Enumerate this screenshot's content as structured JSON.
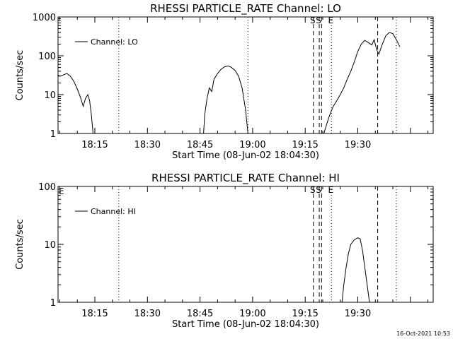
{
  "footer": {
    "timestamp": "16-Oct-2021 10:53"
  },
  "colors": {
    "background": "#ffffff",
    "foreground": "#000000"
  },
  "chart_data": [
    {
      "type": "line",
      "title": "RHESSI PARTICLE_RATE Channel: LO",
      "xlabel": "Start Time (08-Jun-02 18:04:30)",
      "ylabel": "Counts/sec",
      "xlim": [
        "18:04:30",
        "19:51:30"
      ],
      "ylim": [
        1,
        1000
      ],
      "yscale": "log",
      "x_ticks": [
        "18:15",
        "18:30",
        "18:45",
        "19:00",
        "19:15",
        "19:30"
      ],
      "y_ticks": [
        "1",
        "10",
        "100",
        "1000"
      ],
      "legend": {
        "entries": [
          "Channel: LO"
        ],
        "position": "top-left"
      },
      "series": [
        {
          "name": "Channel: LO",
          "segments": [
            [
              [
                "18:04:30",
                32
              ],
              [
                "18:05:00",
                30
              ],
              [
                "18:06:00",
                32
              ],
              [
                "18:07:00",
                35
              ],
              [
                "18:08:00",
                30
              ],
              [
                "18:09:00",
                22
              ],
              [
                "18:10:00",
                14
              ],
              [
                "18:11:00",
                8
              ],
              [
                "18:11:40",
                5
              ],
              [
                "18:12:20",
                8
              ],
              [
                "18:13:00",
                10
              ],
              [
                "18:13:30",
                7
              ],
              [
                "18:14:00",
                3
              ],
              [
                "18:14:30",
                1
              ]
            ],
            [
              [
                "18:46:00",
                1
              ],
              [
                "18:46:20",
                3
              ],
              [
                "18:47:00",
                8
              ],
              [
                "18:47:40",
                15
              ],
              [
                "18:48:20",
                12
              ],
              [
                "18:49:00",
                25
              ],
              [
                "18:50:00",
                35
              ],
              [
                "18:51:00",
                45
              ],
              [
                "18:52:00",
                52
              ],
              [
                "18:53:00",
                55
              ],
              [
                "18:54:00",
                50
              ],
              [
                "18:55:00",
                42
              ],
              [
                "18:56:00",
                30
              ],
              [
                "18:57:00",
                15
              ],
              [
                "18:58:00",
                4
              ],
              [
                "18:58:40",
                1
              ]
            ],
            [
              [
                "19:20:20",
                1
              ],
              [
                "19:21:20",
                2
              ],
              [
                "19:22:00",
                3
              ],
              [
                "19:23:00",
                5
              ],
              [
                "19:24:00",
                7
              ],
              [
                "19:25:00",
                10
              ],
              [
                "19:26:00",
                15
              ],
              [
                "19:27:00",
                25
              ],
              [
                "19:28:00",
                40
              ],
              [
                "19:29:00",
                70
              ],
              [
                "19:30:00",
                130
              ],
              [
                "19:31:00",
                200
              ],
              [
                "19:32:00",
                250
              ],
              [
                "19:33:00",
                220
              ],
              [
                "19:34:00",
                190
              ],
              [
                "19:34:40",
                260
              ],
              [
                "19:35:20",
                150
              ],
              [
                "19:36:00",
                110
              ],
              [
                "19:37:00",
                200
              ],
              [
                "19:38:00",
                330
              ],
              [
                "19:39:00",
                400
              ],
              [
                "19:40:00",
                370
              ],
              [
                "19:41:00",
                260
              ],
              [
                "19:42:00",
                170
              ]
            ]
          ]
        }
      ],
      "markers": [
        {
          "label": "S",
          "time": "19:17:20",
          "style": "dashed"
        },
        {
          "label": "S",
          "time": "19:19:00",
          "style": "dashed"
        },
        {
          "label": "",
          "time": "19:19:40",
          "style": "dashed"
        },
        {
          "label": "E",
          "time": "19:22:30",
          "style": "dotted"
        },
        {
          "label": "",
          "time": "19:35:40",
          "style": "dashed"
        },
        {
          "label": "",
          "time": "19:41:00",
          "style": "dotted"
        },
        {
          "label": "",
          "time": "18:21:50",
          "style": "dotted"
        },
        {
          "label": "",
          "time": "18:58:40",
          "style": "dotted"
        }
      ]
    },
    {
      "type": "line",
      "title": "RHESSI PARTICLE_RATE Channel: HI",
      "xlabel": "Start Time (08-Jun-02 18:04:30)",
      "ylabel": "Counts/sec",
      "xlim": [
        "18:04:30",
        "19:51:30"
      ],
      "ylim": [
        1,
        100
      ],
      "yscale": "log",
      "x_ticks": [
        "18:15",
        "18:30",
        "18:45",
        "19:00",
        "19:15",
        "19:30"
      ],
      "y_ticks": [
        "1",
        "10",
        "100"
      ],
      "legend": {
        "entries": [
          "Channel: HI"
        ],
        "position": "top-left"
      },
      "corner_label": "E",
      "series": [
        {
          "name": "Channel: HI",
          "segments": [
            [
              [
                "19:25:30",
                1
              ],
              [
                "19:26:00",
                2
              ],
              [
                "19:26:40",
                4
              ],
              [
                "19:27:20",
                7
              ],
              [
                "19:28:00",
                10
              ],
              [
                "19:29:00",
                12
              ],
              [
                "19:30:00",
                13
              ],
              [
                "19:30:40",
                12.5
              ],
              [
                "19:31:20",
                8
              ],
              [
                "19:32:00",
                4
              ],
              [
                "19:32:40",
                2
              ],
              [
                "19:33:20",
                1
              ]
            ]
          ]
        }
      ],
      "markers": [
        {
          "label": "S",
          "time": "19:17:20",
          "style": "dashed"
        },
        {
          "label": "S",
          "time": "19:19:00",
          "style": "dashed"
        },
        {
          "label": "",
          "time": "19:19:40",
          "style": "dashed"
        },
        {
          "label": "E",
          "time": "19:22:30",
          "style": "dotted"
        },
        {
          "label": "",
          "time": "19:35:40",
          "style": "dashed"
        },
        {
          "label": "",
          "time": "19:41:00",
          "style": "dotted"
        },
        {
          "label": "",
          "time": "18:21:50",
          "style": "dotted"
        }
      ]
    }
  ]
}
